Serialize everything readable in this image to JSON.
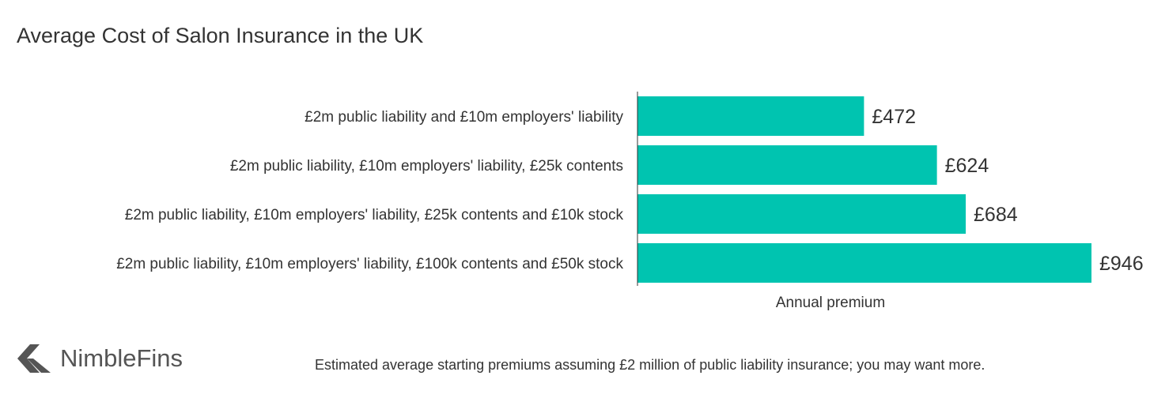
{
  "chart_data": {
    "type": "bar",
    "orientation": "horizontal",
    "title": "Average Cost of Salon Insurance in the UK",
    "categories": [
      "£2m public liability and £10m employers' liability",
      "£2m public liability, £10m employers' liability, £25k contents",
      "£2m public liability, £10m employers' liability, £25k contents and £10k stock",
      "£2m public liability, £10m employers' liability, £100k contents and £50k stock"
    ],
    "values": [
      472,
      624,
      684,
      946
    ],
    "value_labels": [
      "£472",
      "£624",
      "£684",
      "£946"
    ],
    "xlabel": "Annual premium",
    "ylabel": "",
    "xlim": [
      0,
      946
    ],
    "grid": false,
    "legend": "none",
    "bar_color": "#00C4B0"
  },
  "branding": {
    "logo_text": "NimbleFins",
    "logo_icon": "arrow-chevron-icon",
    "logo_color": "#555555"
  },
  "footnote": "Estimated average starting premiums assuming £2 million of public liability insurance; you may want more."
}
